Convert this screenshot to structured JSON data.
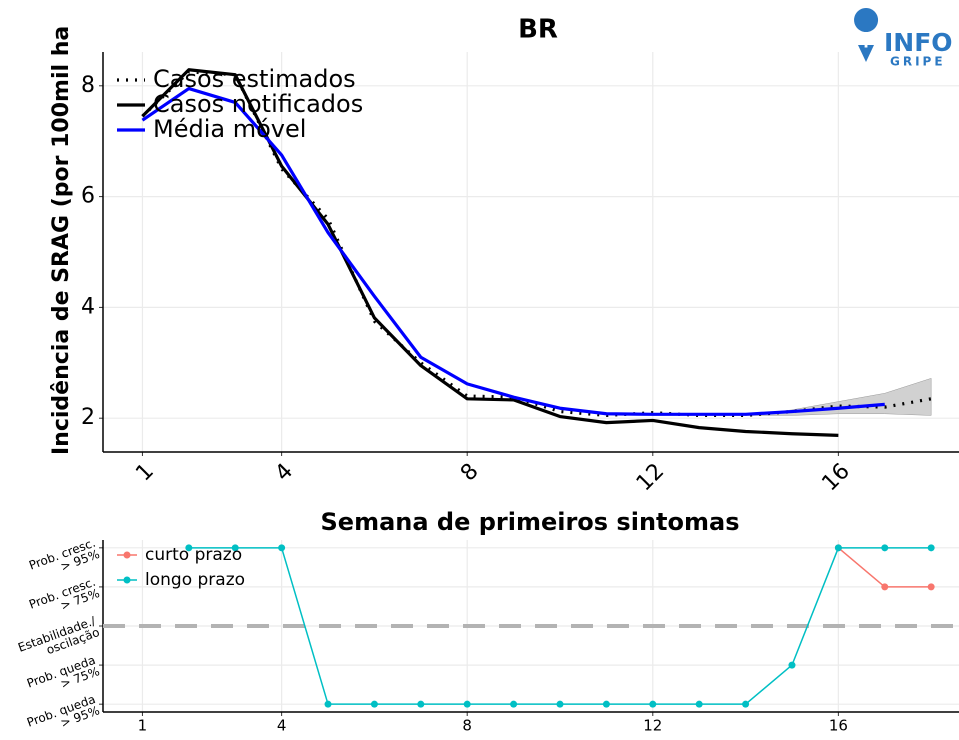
{
  "logo": {
    "line1": "INFO",
    "line2": "GRIPE"
  },
  "chart_data": [
    {
      "type": "line",
      "title": "BR",
      "xlabel": "Semana de primeiros sintomas",
      "ylabel": "Incidência de SRAG (por 100mil ha",
      "xlim": [
        0.15,
        18.6
      ],
      "ylim": [
        1.39,
        8.61
      ],
      "xticks": [
        1,
        4,
        8,
        12,
        16
      ],
      "yticks": [
        2,
        4,
        6,
        8
      ],
      "grid": true,
      "xtick_rotation": 45,
      "legend": "top-left",
      "band": {
        "color": "#bdbdbd",
        "x": [
          14,
          15,
          16,
          17,
          18
        ],
        "lower": [
          2.05,
          2.05,
          2.08,
          2.08,
          2.05
        ],
        "upper": [
          2.05,
          2.15,
          2.3,
          2.45,
          2.72
        ]
      },
      "series": [
        {
          "name": "Casos estimados",
          "color": "#000000",
          "style": "dotted",
          "x": [
            1,
            2,
            3,
            4,
            5,
            6,
            7,
            8,
            9,
            10,
            11,
            12,
            13,
            14,
            15,
            16,
            17,
            18
          ],
          "values": [
            7.45,
            8.25,
            8.2,
            6.5,
            5.6,
            3.75,
            3.0,
            2.4,
            2.38,
            2.12,
            2.05,
            2.1,
            2.05,
            2.05,
            2.12,
            2.22,
            2.2,
            2.35
          ]
        },
        {
          "name": "Casos notificados",
          "color": "#000000",
          "style": "solid",
          "x": [
            1,
            2,
            3,
            4,
            5,
            6,
            7,
            8,
            9,
            10,
            11,
            12,
            13,
            14,
            15,
            16
          ],
          "values": [
            7.45,
            8.29,
            8.2,
            6.55,
            5.5,
            3.81,
            2.95,
            2.35,
            2.33,
            2.03,
            1.92,
            1.96,
            1.83,
            1.76,
            1.72,
            1.69
          ]
        },
        {
          "name": "Média móvel",
          "color": "#0000ff",
          "style": "solid",
          "x": [
            1,
            2,
            3,
            4,
            5,
            6,
            7,
            8,
            9,
            10,
            11,
            12,
            13,
            14,
            15,
            16,
            17
          ],
          "values": [
            7.38,
            7.95,
            7.7,
            6.75,
            5.35,
            4.2,
            3.1,
            2.62,
            2.38,
            2.18,
            2.08,
            2.07,
            2.07,
            2.07,
            2.12,
            2.18,
            2.25
          ]
        }
      ]
    },
    {
      "type": "line",
      "xlim": [
        0.15,
        18.6
      ],
      "ylim": [
        -2.2,
        2.2
      ],
      "xticks": [
        1,
        4,
        8,
        12,
        16
      ],
      "yticks": [
        {
          "value": 2,
          "label": [
            "Prob. cresc.",
            "> 95%"
          ]
        },
        {
          "value": 1,
          "label": [
            "Prob. cresc.",
            "> 75%"
          ]
        },
        {
          "value": 0,
          "label": [
            "Estabilidade./",
            "oscilação"
          ]
        },
        {
          "value": -1,
          "label": [
            "Prob. queda",
            "> 75%"
          ]
        },
        {
          "value": -2,
          "label": [
            "Prob. queda",
            "> 95%"
          ]
        }
      ],
      "grid": true,
      "hline": 0,
      "markers": true,
      "legend": "top-left",
      "series": [
        {
          "name": "curto prazo",
          "color": "#F8766D",
          "style": "solid",
          "x": [
            16,
            17,
            18
          ],
          "values": [
            2,
            1,
            1
          ]
        },
        {
          "name": "longo prazo",
          "color": "#00BFC4",
          "style": "solid",
          "x": [
            2,
            3,
            4,
            5,
            6,
            7,
            8,
            9,
            10,
            11,
            12,
            13,
            14,
            15,
            16,
            17,
            18
          ],
          "values": [
            2,
            2,
            2,
            -2,
            -2,
            -2,
            -2,
            -2,
            -2,
            -2,
            -2,
            -2,
            -2,
            -1,
            2,
            2,
            2
          ]
        }
      ]
    }
  ]
}
